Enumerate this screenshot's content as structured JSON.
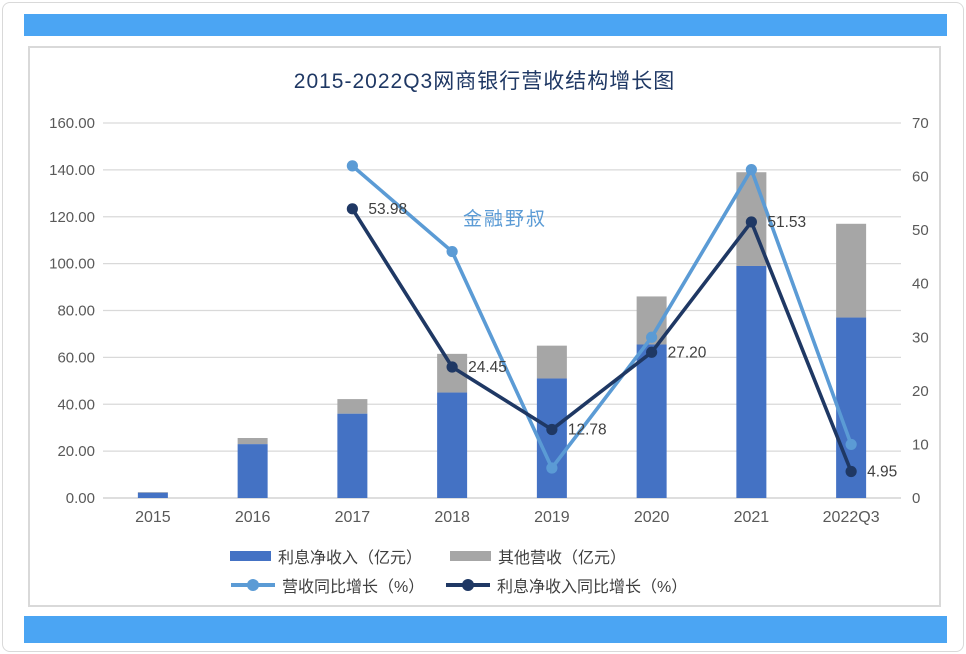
{
  "page": {
    "accent_bar_color": "#4BA5F3",
    "watermark": "金融野叔",
    "watermark_color": "#5B9BD5",
    "title_color": "#1F3864",
    "axis_text_color": "#595959",
    "data_label_color": "#404040",
    "gridline_color": "#D9D9D9"
  },
  "chart_data": {
    "type": "combo bar+line (stacked bars on left axis, lines on right axis)",
    "title": "2015-2022Q3网商银行营收结构增长图",
    "categories": [
      "2015",
      "2016",
      "2017",
      "2018",
      "2019",
      "2020",
      "2021",
      "2022Q3"
    ],
    "left_axis": {
      "min": 0,
      "max": 160,
      "step": 20,
      "tick_labels": [
        "0.00",
        "20.00",
        "40.00",
        "60.00",
        "80.00",
        "100.00",
        "120.00",
        "140.00",
        "160.00"
      ]
    },
    "right_axis": {
      "min": 0,
      "max": 70,
      "step": 10,
      "tick_labels": [
        "0",
        "10",
        "20",
        "30",
        "40",
        "50",
        "60",
        "70"
      ]
    },
    "grid": true,
    "legend_position": "bottom",
    "series": [
      {
        "name": "利息净收入（亿元）",
        "type": "bar",
        "axis": "left",
        "color": "#4472C4",
        "values": [
          2.3,
          23,
          36,
          45,
          51,
          65.5,
          99,
          77
        ]
      },
      {
        "name": "其他营收（亿元）",
        "type": "bar",
        "axis": "left",
        "color": "#A6A6A6",
        "values": [
          0.2,
          2.6,
          6.2,
          16.5,
          14,
          20.5,
          40,
          40
        ]
      },
      {
        "name": "营收同比增长（%）",
        "type": "line",
        "axis": "right",
        "color": "#5B9BD5",
        "values": [
          null,
          null,
          62.0,
          46.0,
          5.6,
          30.0,
          61.3,
          10.0
        ],
        "labels": [
          null,
          null,
          null,
          null,
          null,
          null,
          null,
          null
        ]
      },
      {
        "name": "利息净收入同比增长（%）",
        "type": "line",
        "axis": "right",
        "color": "#1F3864",
        "values": [
          null,
          null,
          53.98,
          24.45,
          12.78,
          27.2,
          51.53,
          4.95
        ],
        "labels": [
          null,
          null,
          "53.98",
          "24.45",
          "12.78",
          "27.20",
          "51.53",
          "4.95"
        ]
      }
    ]
  }
}
